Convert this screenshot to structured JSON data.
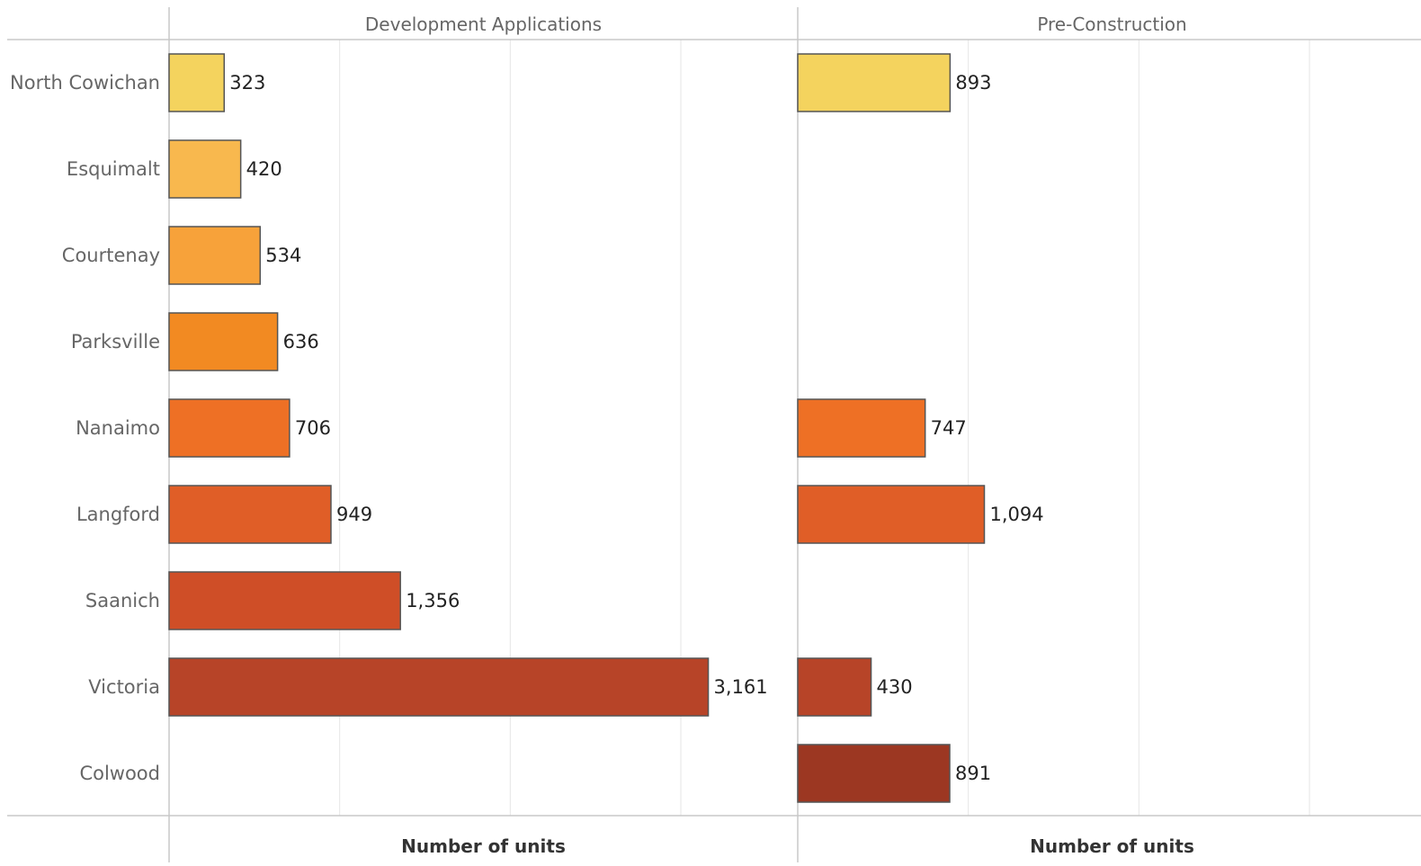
{
  "chart_data": {
    "type": "bar",
    "orientation": "horizontal",
    "categories": [
      "North Cowichan",
      "Esquimalt",
      "Courtenay",
      "Parksville",
      "Nanaimo",
      "Langford",
      "Saanich",
      "Victoria",
      "Colwood"
    ],
    "colors": [
      "#F4D35E",
      "#F8B84E",
      "#F7A23A",
      "#F28A22",
      "#EE7025",
      "#E05E27",
      "#CF4E27",
      "#B74428",
      "#9C3722"
    ],
    "bar_outline_color": "#555555",
    "gridline_color": "#E6E6E6",
    "axis_line_color": "#C8C8C8",
    "panels": [
      {
        "title": "Development Applications",
        "xlabel": "Number of units",
        "xlim": [
          0,
          3700
        ],
        "values": [
          323,
          420,
          534,
          636,
          706,
          949,
          1356,
          3161,
          null
        ],
        "labels": [
          "323",
          "420",
          "534",
          "636",
          "706",
          "949",
          "1,356",
          "3,161",
          ""
        ]
      },
      {
        "title": "Pre-Construction",
        "xlabel": "Number of units",
        "xlim": [
          0,
          3700
        ],
        "values": [
          893,
          null,
          null,
          null,
          747,
          1094,
          null,
          430,
          891
        ],
        "labels": [
          "893",
          "",
          "",
          "",
          "747",
          "1,094",
          "",
          "430",
          "891"
        ]
      }
    ],
    "grid": true,
    "legend": "none"
  }
}
